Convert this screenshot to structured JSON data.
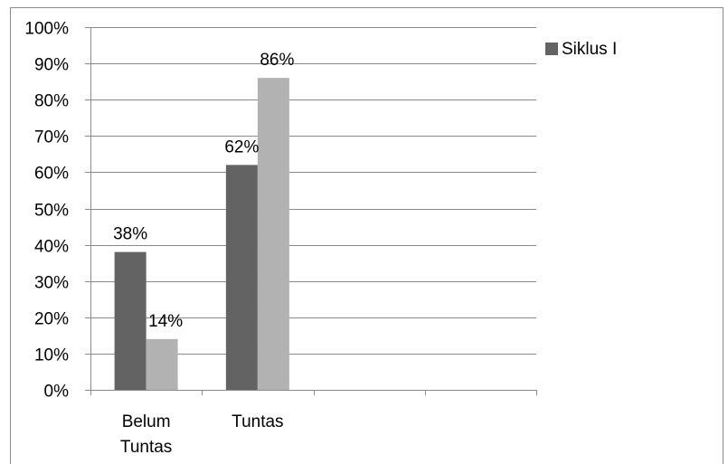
{
  "colors": {
    "series_dark": "#636363",
    "series_light": "#b2b2b2",
    "gridline": "#8a8a8a",
    "axis": "#8a8a8a",
    "border": "#8a8a8a",
    "text": "#000000"
  },
  "chart_data": {
    "type": "bar",
    "title": "",
    "xlabel": "",
    "ylabel": "",
    "ylim": [
      0,
      100
    ],
    "y_ticks": [
      "0%",
      "10%",
      "20%",
      "30%",
      "40%",
      "50%",
      "60%",
      "70%",
      "80%",
      "90%",
      "100%"
    ],
    "y_tick_values": [
      0,
      10,
      20,
      30,
      40,
      50,
      60,
      70,
      80,
      90,
      100
    ],
    "categories": [
      [
        "Belum",
        "Tuntas"
      ],
      [
        "Tuntas"
      ],
      [
        ""
      ],
      [
        ""
      ]
    ],
    "series": [
      {
        "name": "Siklus I",
        "color": "#636363",
        "values": [
          38,
          62,
          null,
          null
        ],
        "labels": [
          "38%",
          "62%",
          "",
          ""
        ]
      },
      {
        "color": "#b2b2b2",
        "values": [
          14,
          86,
          null,
          null
        ],
        "labels": [
          "14%",
          "86%",
          "",
          ""
        ]
      }
    ],
    "grid": true,
    "legend": {
      "position": "right",
      "entries": [
        "Siklus I"
      ]
    }
  }
}
